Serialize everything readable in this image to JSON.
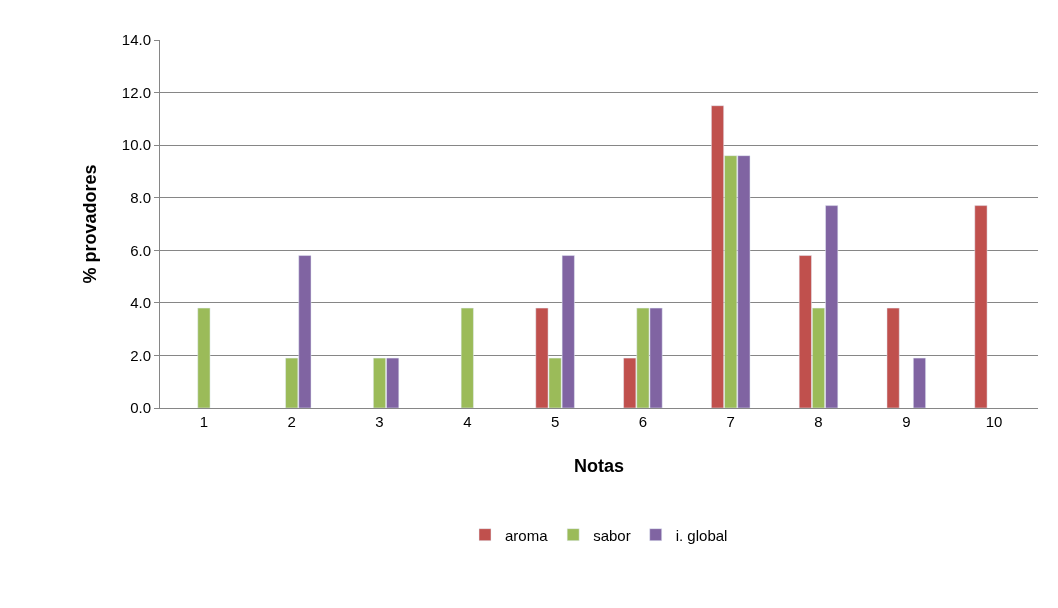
{
  "chart_data": {
    "type": "bar",
    "xlabel": "Notas",
    "ylabel": "% provadores",
    "categories": [
      "1",
      "2",
      "3",
      "4",
      "5",
      "6",
      "7",
      "8",
      "9",
      "10"
    ],
    "series": [
      {
        "name": "aroma",
        "color": "#c0504d",
        "values": [
          null,
          null,
          null,
          null,
          3.8,
          1.9,
          11.5,
          5.8,
          3.8,
          7.7
        ]
      },
      {
        "name": "sabor",
        "color": "#9bbb59",
        "values": [
          3.8,
          1.9,
          1.9,
          3.8,
          1.9,
          3.8,
          9.6,
          3.8,
          null,
          null
        ]
      },
      {
        "name": "i. global",
        "color": "#8064a2",
        "values": [
          null,
          5.8,
          1.9,
          null,
          5.8,
          3.8,
          9.6,
          7.7,
          1.9,
          null
        ]
      }
    ],
    "ylim": [
      0,
      14
    ],
    "yticks": [
      {
        "value": 0,
        "label": "0.0"
      },
      {
        "value": 2,
        "label": "2.0"
      },
      {
        "value": 4,
        "label": "4.0"
      },
      {
        "value": 6,
        "label": "6.0"
      },
      {
        "value": 8,
        "label": "8.0"
      },
      {
        "value": 10,
        "label": "10.0"
      },
      {
        "value": 12,
        "label": "12.0"
      },
      {
        "value": 14,
        "label": "14.0"
      }
    ],
    "grid": "y",
    "legend": "bottom"
  }
}
